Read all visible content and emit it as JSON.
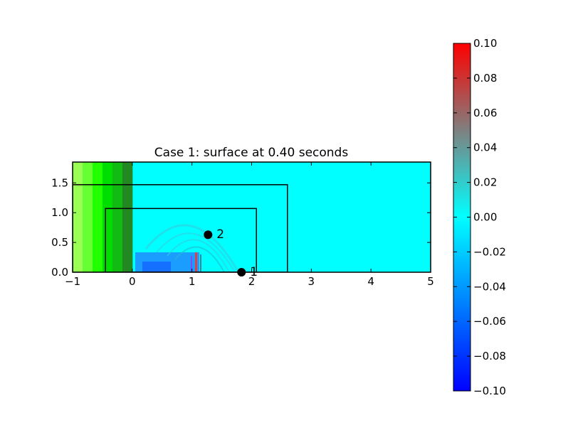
{
  "chart_data": {
    "type": "heatmap",
    "title": "Case 1: surface at 0.40 seconds",
    "xlabel": "",
    "ylabel": "",
    "xlim": [
      -1,
      5
    ],
    "ylim": [
      0,
      1.85
    ],
    "x_ticks": [
      "−1",
      "0",
      "1",
      "2",
      "3",
      "4",
      "5"
    ],
    "x_tick_values": [
      -1,
      0,
      1,
      2,
      3,
      4,
      5
    ],
    "y_ticks": [
      "0.0",
      "0.5",
      "1.0",
      "1.5"
    ],
    "y_tick_values": [
      0,
      0.5,
      1.0,
      1.5
    ],
    "colorbar": {
      "min": -0.1,
      "max": 0.1,
      "ticks": [
        "0.10",
        "0.08",
        "0.06",
        "0.04",
        "0.02",
        "0.00",
        "−0.02",
        "−0.04",
        "−0.06",
        "−0.08",
        "−0.10"
      ],
      "tick_values": [
        0.1,
        0.08,
        0.06,
        0.04,
        0.02,
        0.0,
        -0.02,
        -0.04,
        -0.06,
        -0.08,
        -0.1
      ],
      "colors": [
        "#0000ff",
        "#00ffff",
        "#ff0000"
      ],
      "neutral_color": "#00ffff"
    },
    "land_region": {
      "x_range": [
        -1,
        0
      ],
      "colors": [
        "#99ff55",
        "#66ff33",
        "#22ff00",
        "#00dd00",
        "#11bb11",
        "#228822"
      ]
    },
    "refinement_boxes": [
      {
        "x": [
          -1,
          2.6
        ],
        "y": [
          0,
          1.47
        ]
      },
      {
        "x": [
          -0.45,
          2.08
        ],
        "y": [
          0,
          1.07
        ]
      }
    ],
    "gauges": [
      {
        "label": "1",
        "x": 1.83,
        "y": 0.0
      },
      {
        "label": "2",
        "x": 1.27,
        "y": 0.63
      }
    ]
  }
}
